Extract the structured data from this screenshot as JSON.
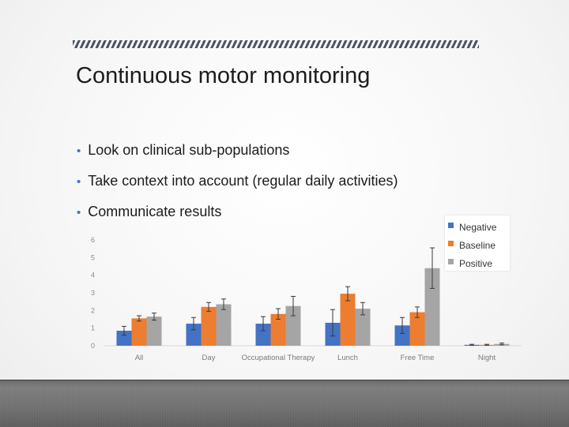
{
  "slide": {
    "title": "Continuous motor monitoring",
    "bullets": [
      "Look on clinical sub-populations",
      "Take context into account (regular daily activities)",
      "Communicate results"
    ]
  },
  "chart_data": {
    "type": "bar",
    "categories": [
      "All",
      "Day",
      "Occupational Therapy",
      "Lunch",
      "Free Time",
      "Night"
    ],
    "series": [
      {
        "name": "Negative",
        "color": "#4472c4",
        "values": [
          0.85,
          1.25,
          1.25,
          1.3,
          1.15,
          0.05
        ],
        "errors": [
          0.25,
          0.35,
          0.4,
          0.75,
          0.45,
          0.03
        ]
      },
      {
        "name": "Baseline",
        "color": "#ed7d31",
        "values": [
          1.55,
          2.2,
          1.8,
          2.95,
          1.9,
          0.05
        ],
        "errors": [
          0.15,
          0.25,
          0.3,
          0.4,
          0.3,
          0.03
        ]
      },
      {
        "name": "Positive",
        "color": "#a5a5a5",
        "values": [
          1.65,
          2.35,
          2.25,
          2.1,
          4.4,
          0.1
        ],
        "errors": [
          0.2,
          0.3,
          0.55,
          0.35,
          1.15,
          0.05
        ]
      }
    ],
    "yticks": [
      "0",
      "1",
      "2",
      "3",
      "4",
      "5",
      "6"
    ],
    "ylim": [
      0,
      6
    ],
    "legend_position": "top-right",
    "error_bars": true,
    "grid": false
  }
}
